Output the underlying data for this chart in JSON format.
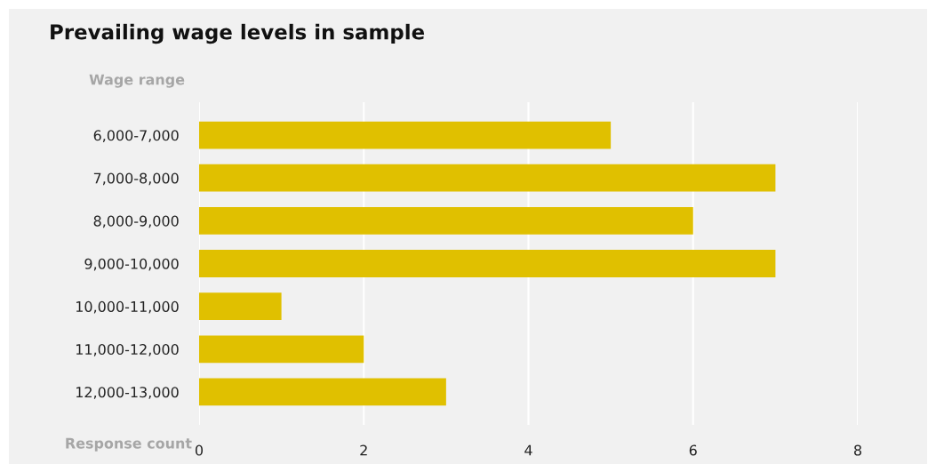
{
  "chart_data": {
    "type": "bar",
    "orientation": "horizontal",
    "title": "Prevailing wage levels in sample",
    "xlabel": "Response count",
    "ylabel": "Wage range",
    "categories": [
      "6,000-7,000",
      "7,000-8,000",
      "8,000-9,000",
      "9,000-10,000",
      "10,000-11,000",
      "11,000-12,000",
      "12,000-13,000"
    ],
    "values": [
      5,
      7,
      6,
      7,
      1,
      2,
      3
    ],
    "color": "#e0c000",
    "xlim": [
      0,
      8
    ],
    "xticks": [
      0,
      2,
      4,
      6,
      8
    ],
    "grid": "x",
    "legend": false
  }
}
